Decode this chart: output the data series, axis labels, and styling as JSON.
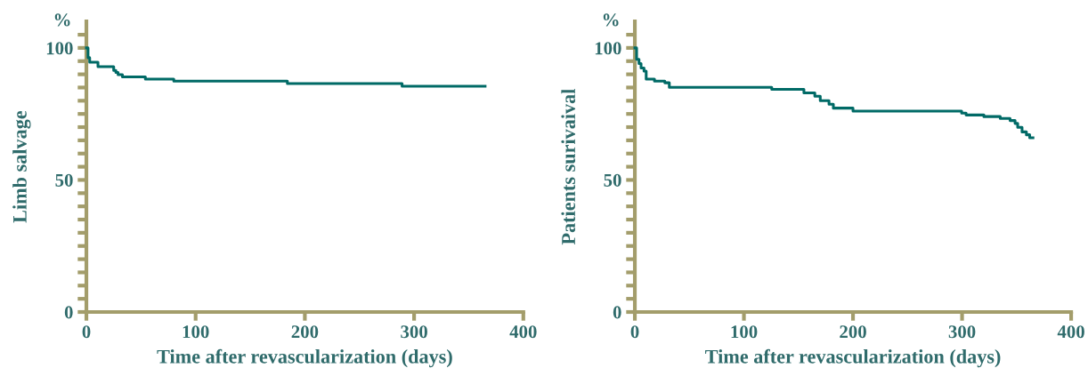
{
  "chart_data": [
    {
      "type": "step",
      "xlabel": "Time after revascularization (days)",
      "ylabel": "Limb salvage",
      "annotations": [
        "%"
      ],
      "xlim": [
        0,
        400
      ],
      "ylim": [
        0,
        110
      ],
      "xticks": [
        0,
        100,
        200,
        300,
        400
      ],
      "yticks": [
        0,
        {
          "value": 5,
          "label": null
        },
        {
          "value": 10,
          "label": null
        },
        {
          "value": 15,
          "label": null
        },
        {
          "value": 20,
          "label": null
        },
        {
          "value": 25,
          "label": null
        },
        {
          "value": 30,
          "label": null
        },
        {
          "value": 35,
          "label": null
        },
        {
          "value": 40,
          "label": null
        },
        {
          "value": 45,
          "label": null
        },
        50,
        {
          "value": 55,
          "label": null
        },
        {
          "value": 60,
          "label": null
        },
        {
          "value": 65,
          "label": null
        },
        {
          "value": 70,
          "label": null
        },
        {
          "value": 75,
          "label": null
        },
        {
          "value": 80,
          "label": null
        },
        {
          "value": 85,
          "label": null
        },
        {
          "value": 90,
          "label": null
        },
        {
          "value": 95,
          "label": null
        },
        100,
        {
          "value": 105,
          "label": null
        }
      ],
      "grid": false,
      "legend": false,
      "marker": "none",
      "line_style": "solid",
      "series": [
        {
          "color": "#006a66",
          "x": [
            0,
            1.5,
            3,
            10.6,
            22.8,
            25,
            27,
            29,
            33,
            54,
            80,
            184,
            289,
            365
          ],
          "values": [
            100,
            96.3,
            94.6,
            92.9,
            92.9,
            91.5,
            90.7,
            89.9,
            89.0,
            88.2,
            87.4,
            86.5,
            85.5,
            85.5
          ]
        }
      ]
    },
    {
      "type": "step",
      "xlabel": "Time after revascularization (days)",
      "ylabel": "Patients surivaival",
      "annotations": [
        "%"
      ],
      "xlim": [
        0,
        400
      ],
      "ylim": [
        0,
        110
      ],
      "xticks": [
        0,
        100,
        200,
        300,
        400
      ],
      "yticks": [
        0,
        {
          "value": 5,
          "label": null
        },
        {
          "value": 10,
          "label": null
        },
        {
          "value": 15,
          "label": null
        },
        {
          "value": 20,
          "label": null
        },
        {
          "value": 25,
          "label": null
        },
        {
          "value": 30,
          "label": null
        },
        {
          "value": 35,
          "label": null
        },
        {
          "value": 40,
          "label": null
        },
        {
          "value": 45,
          "label": null
        },
        50,
        {
          "value": 55,
          "label": null
        },
        {
          "value": 60,
          "label": null
        },
        {
          "value": 65,
          "label": null
        },
        {
          "value": 70,
          "label": null
        },
        {
          "value": 75,
          "label": null
        },
        {
          "value": 80,
          "label": null
        },
        {
          "value": 85,
          "label": null
        },
        {
          "value": 90,
          "label": null
        },
        {
          "value": 95,
          "label": null
        },
        100,
        {
          "value": 105,
          "label": null
        }
      ],
      "grid": false,
      "legend": false,
      "marker": "none",
      "line_style": "solid",
      "series": [
        {
          "color": "#006a66",
          "x": [
            0,
            1.6,
            3.8,
            5.7,
            8.4,
            10.4,
            18,
            27.5,
            31.6,
            125.5,
            155,
            165,
            170,
            178,
            182,
            200,
            299.6,
            303.7,
            320,
            335,
            344,
            348.6,
            351,
            355,
            359,
            362,
            365
          ],
          "values": [
            100,
            95.7,
            94.1,
            92.4,
            91.2,
            88.2,
            87.4,
            86.8,
            85.1,
            84.3,
            83.0,
            81.7,
            80.0,
            78.7,
            77.2,
            76.1,
            75.3,
            74.6,
            74.0,
            73.3,
            72.5,
            71.4,
            69.9,
            68.2,
            67.1,
            66.0,
            66.0
          ]
        }
      ]
    }
  ]
}
